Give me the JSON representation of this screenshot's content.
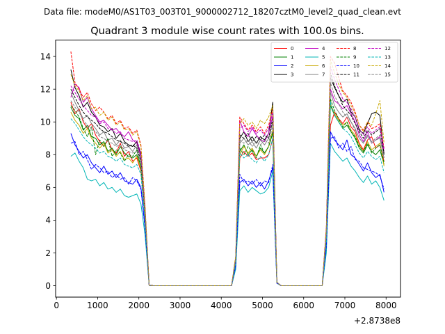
{
  "chart_data": {
    "type": "line",
    "suptitle": "Data file: modeM0/AS1T03_003T01_9000002712_18207cztM0_level2_quad_clean.evt",
    "title": "Quadrant 3 module wise count rates with 100.0s bins.",
    "xlabel": "",
    "ylabel": "",
    "x_offset_label": "+2.8738e8",
    "xlim": [
      -20,
      8350
    ],
    "ylim": [
      -0.7,
      15.0
    ],
    "x_ticks": [
      0,
      1000,
      2000,
      3000,
      4000,
      5000,
      6000,
      7000,
      8000
    ],
    "x_tick_labels": [
      "0",
      "1000",
      "2000",
      "3000",
      "4000",
      "5000",
      "6000",
      "7000",
      "8000"
    ],
    "y_ticks": [
      0,
      2,
      4,
      6,
      8,
      10,
      12,
      14
    ],
    "y_tick_labels": [
      "0",
      "2",
      "4",
      "6",
      "8",
      "10",
      "12",
      "14"
    ],
    "grid": false,
    "legend": {
      "location": "top-right",
      "ncol": 4
    },
    "x": [
      350,
      450,
      550,
      650,
      750,
      850,
      950,
      1050,
      1150,
      1250,
      1350,
      1450,
      1550,
      1650,
      1750,
      1850,
      1950,
      2050,
      2150,
      2250,
      2350,
      4250,
      4350,
      4450,
      4550,
      4650,
      4750,
      4850,
      4950,
      5050,
      5150,
      5250,
      5350,
      5450,
      5550,
      6450,
      6550,
      6650,
      6750,
      6850,
      6950,
      7050,
      7150,
      7250,
      7350,
      7450,
      7550,
      7650,
      7750,
      7850,
      7950
    ],
    "series": [
      {
        "name": "0",
        "color": "#ff0000",
        "dash": "solid",
        "values": [
          11.2,
          10.5,
          10.8,
          10.0,
          9.6,
          9.9,
          9.2,
          8.8,
          8.5,
          8.9,
          8.3,
          8.1,
          8.7,
          7.9,
          8.2,
          7.6,
          7.8,
          7.0,
          4.2,
          0.02,
          0.0,
          0.0,
          1.5,
          7.8,
          8.2,
          7.9,
          8.1,
          7.7,
          7.8,
          7.8,
          8.0,
          9.0,
          0.2,
          0.0,
          0.0,
          0.0,
          3.0,
          9.8,
          10.6,
          10.2,
          9.9,
          10.3,
          9.7,
          9.4,
          8.7,
          8.3,
          8.9,
          9.1,
          8.4,
          8.6,
          7.6
        ]
      },
      {
        "name": "1",
        "color": "#008000",
        "dash": "solid",
        "values": [
          10.9,
          10.4,
          10.2,
          9.5,
          9.8,
          9.1,
          9.0,
          8.6,
          8.8,
          8.2,
          8.4,
          8.0,
          8.5,
          8.1,
          7.9,
          7.8,
          8.0,
          7.3,
          4.0,
          0.02,
          0.0,
          0.0,
          1.4,
          8.2,
          8.6,
          8.0,
          8.3,
          7.9,
          8.4,
          8.1,
          8.5,
          9.3,
          0.2,
          0.0,
          0.0,
          0.0,
          3.0,
          11.0,
          10.4,
          10.0,
          9.6,
          9.8,
          9.4,
          9.0,
          8.4,
          8.1,
          8.6,
          8.2,
          8.0,
          8.3,
          7.4
        ]
      },
      {
        "name": "2",
        "color": "#0000ff",
        "dash": "solid",
        "values": [
          9.3,
          8.6,
          8.2,
          7.8,
          8.0,
          7.5,
          7.2,
          6.9,
          7.3,
          6.8,
          7.0,
          6.6,
          6.9,
          6.4,
          6.3,
          6.2,
          6.5,
          6.0,
          3.6,
          0.02,
          0.0,
          0.0,
          1.2,
          6.3,
          6.5,
          6.1,
          6.4,
          6.0,
          6.3,
          5.9,
          6.4,
          7.2,
          0.15,
          0.0,
          0.0,
          0.0,
          2.3,
          9.4,
          8.9,
          8.6,
          8.3,
          8.9,
          8.0,
          7.8,
          7.4,
          7.0,
          7.5,
          6.9,
          6.6,
          6.8,
          5.7
        ]
      },
      {
        "name": "3",
        "color": "#000000",
        "dash": "solid",
        "values": [
          13.2,
          12.1,
          11.6,
          10.9,
          11.2,
          10.6,
          10.3,
          9.8,
          9.7,
          9.4,
          9.6,
          9.0,
          9.3,
          8.8,
          8.6,
          8.5,
          8.8,
          8.0,
          4.7,
          0.02,
          0.0,
          0.0,
          1.7,
          9.0,
          9.4,
          8.8,
          9.1,
          8.7,
          9.1,
          8.9,
          9.3,
          11.2,
          0.2,
          0.0,
          0.0,
          0.0,
          3.4,
          12.7,
          12.1,
          11.6,
          11.2,
          11.4,
          10.6,
          10.3,
          9.5,
          9.3,
          9.9,
          10.5,
          10.6,
          10.4,
          8.0
        ]
      },
      {
        "name": "4",
        "color": "#c000c0",
        "dash": "solid",
        "values": [
          11.5,
          12.3,
          12.1,
          11.2,
          11.5,
          10.8,
          10.4,
          10.0,
          10.1,
          9.8,
          9.5,
          9.6,
          9.3,
          9.1,
          9.4,
          8.9,
          8.7,
          7.9,
          4.5,
          0.02,
          0.0,
          0.0,
          1.6,
          10.1,
          9.4,
          9.1,
          9.6,
          9.2,
          8.9,
          8.8,
          9.3,
          10.4,
          0.2,
          0.0,
          0.0,
          0.0,
          3.3,
          12.0,
          11.3,
          11.1,
          10.8,
          11.0,
          10.5,
          10.0,
          9.2,
          8.8,
          9.4,
          8.7,
          8.9,
          9.1,
          8.2
        ]
      },
      {
        "name": "5",
        "color": "#00b5b5",
        "dash": "solid",
        "values": [
          7.9,
          8.1,
          7.6,
          7.2,
          6.5,
          6.4,
          6.5,
          6.1,
          6.3,
          5.9,
          6.0,
          5.7,
          5.9,
          5.5,
          5.4,
          5.5,
          5.6,
          5.0,
          3.1,
          0.02,
          0.0,
          0.0,
          1.0,
          5.8,
          6.1,
          5.7,
          6.0,
          5.8,
          5.6,
          5.7,
          6.0,
          7.0,
          0.15,
          0.0,
          0.0,
          0.0,
          2.0,
          8.7,
          8.2,
          7.9,
          7.6,
          7.8,
          7.3,
          7.0,
          6.6,
          6.3,
          6.7,
          6.2,
          6.4,
          6.0,
          5.2
        ]
      },
      {
        "name": "6",
        "color": "#c8a800",
        "dash": "solid",
        "values": [
          10.6,
          10.1,
          9.8,
          9.3,
          9.6,
          9.0,
          8.7,
          8.4,
          8.7,
          8.1,
          8.3,
          7.9,
          8.2,
          7.7,
          7.8,
          7.5,
          7.9,
          7.1,
          4.1,
          0.02,
          0.0,
          0.0,
          1.5,
          8.0,
          8.5,
          8.1,
          8.4,
          7.9,
          8.3,
          8.0,
          8.5,
          9.5,
          0.2,
          0.0,
          0.0,
          0.0,
          3.0,
          11.1,
          10.5,
          10.1,
          9.8,
          10.0,
          9.5,
          9.2,
          8.6,
          8.2,
          8.8,
          8.3,
          8.5,
          8.7,
          7.3
        ]
      },
      {
        "name": "7",
        "color": "#808080",
        "dash": "solid",
        "values": [
          11.8,
          11.2,
          10.7,
          10.2,
          10.4,
          9.9,
          9.6,
          9.2,
          9.4,
          8.9,
          9.0,
          8.6,
          8.9,
          8.4,
          8.5,
          8.2,
          8.6,
          7.7,
          4.4,
          0.02,
          0.0,
          0.0,
          1.6,
          8.7,
          9.0,
          8.6,
          8.8,
          8.4,
          8.9,
          8.6,
          9.0,
          10.0,
          0.2,
          0.0,
          0.0,
          0.0,
          3.2,
          11.8,
          11.0,
          10.6,
          10.3,
          10.5,
          10.0,
          9.6,
          9.0,
          8.7,
          9.2,
          8.7,
          8.9,
          9.0,
          7.8
        ]
      },
      {
        "name": "8",
        "color": "#ff0000",
        "dash": "dashed",
        "values": [
          14.3,
          12.4,
          12.0,
          11.5,
          11.8,
          11.1,
          10.7,
          10.9,
          10.6,
          10.2,
          10.4,
          9.9,
          10.1,
          9.6,
          9.7,
          9.3,
          9.5,
          8.6,
          4.9,
          0.02,
          0.0,
          0.0,
          1.8,
          10.3,
          9.9,
          9.5,
          9.8,
          9.4,
          9.7,
          9.3,
          9.8,
          10.8,
          0.2,
          0.0,
          0.0,
          0.0,
          3.6,
          14.0,
          13.6,
          12.7,
          11.9,
          11.6,
          11.2,
          10.6,
          9.8,
          9.5,
          10.0,
          9.6,
          9.7,
          9.9,
          8.4
        ]
      },
      {
        "name": "9",
        "color": "#008000",
        "dash": "dashed",
        "values": [
          11.0,
          10.7,
          10.3,
          9.6,
          9.1,
          9.7,
          8.0,
          8.9,
          8.5,
          9.0,
          7.9,
          8.3,
          8.1,
          7.6,
          8.0,
          7.9,
          8.3,
          7.2,
          4.0,
          0.02,
          0.0,
          0.0,
          1.5,
          8.4,
          8.0,
          8.5,
          8.2,
          7.8,
          8.6,
          8.1,
          8.5,
          9.4,
          0.2,
          0.0,
          0.0,
          0.0,
          3.0,
          11.4,
          10.7,
          10.2,
          9.7,
          10.0,
          9.4,
          9.1,
          8.5,
          8.2,
          8.7,
          8.1,
          8.4,
          8.6,
          7.5
        ]
      },
      {
        "name": "10",
        "color": "#0000ff",
        "dash": "dashed",
        "values": [
          8.7,
          8.8,
          8.0,
          8.2,
          7.7,
          7.1,
          7.4,
          7.2,
          6.9,
          7.0,
          6.6,
          6.8,
          6.5,
          6.6,
          6.2,
          6.6,
          6.4,
          5.9,
          3.5,
          0.02,
          0.0,
          0.0,
          1.2,
          6.8,
          6.3,
          6.4,
          6.2,
          6.5,
          6.1,
          6.4,
          6.3,
          7.4,
          0.15,
          0.0,
          0.0,
          0.0,
          2.4,
          9.0,
          9.1,
          8.4,
          8.7,
          8.2,
          8.5,
          7.7,
          7.6,
          7.2,
          7.1,
          7.0,
          6.9,
          6.7,
          5.9
        ]
      },
      {
        "name": "11",
        "color": "#000000",
        "dash": "dashed",
        "values": [
          12.0,
          11.5,
          11.0,
          10.6,
          10.3,
          10.1,
          9.9,
          9.6,
          9.4,
          9.3,
          9.1,
          8.9,
          8.8,
          8.7,
          8.5,
          8.6,
          8.4,
          7.6,
          4.4,
          0.02,
          0.0,
          0.0,
          1.6,
          9.2,
          9.0,
          9.3,
          8.8,
          9.1,
          8.9,
          9.2,
          9.0,
          10.2,
          0.2,
          0.0,
          0.0,
          0.0,
          3.3,
          13.0,
          12.2,
          11.6,
          11.0,
          10.7,
          10.4,
          9.9,
          9.4,
          9.0,
          9.5,
          9.2,
          9.4,
          9.6,
          8.1
        ]
      },
      {
        "name": "12",
        "color": "#c000c0",
        "dash": "dashed",
        "values": [
          12.2,
          11.8,
          11.4,
          11.0,
          10.7,
          10.4,
          10.3,
          9.9,
          10.0,
          9.6,
          9.5,
          9.3,
          9.4,
          9.0,
          8.9,
          8.8,
          8.9,
          8.1,
          4.6,
          0.02,
          0.0,
          0.0,
          1.7,
          9.6,
          9.8,
          9.4,
          9.7,
          9.3,
          9.5,
          9.2,
          9.6,
          10.6,
          0.2,
          0.0,
          0.0,
          0.0,
          3.4,
          13.4,
          12.6,
          12.0,
          11.4,
          11.2,
          10.8,
          10.3,
          9.6,
          9.2,
          9.7,
          9.3,
          9.5,
          9.7,
          8.3
        ]
      },
      {
        "name": "13",
        "color": "#00b5b5",
        "dash": "dashed",
        "values": [
          10.2,
          9.9,
          9.5,
          9.1,
          8.8,
          8.6,
          8.4,
          8.1,
          8.2,
          7.9,
          7.8,
          7.6,
          7.8,
          7.4,
          7.3,
          7.2,
          7.4,
          6.8,
          3.9,
          0.02,
          0.0,
          0.0,
          1.4,
          8.1,
          7.8,
          8.0,
          7.7,
          7.5,
          7.9,
          7.6,
          8.0,
          9.0,
          0.2,
          0.0,
          0.0,
          0.0,
          2.8,
          11.2,
          10.4,
          10.0,
          9.6,
          9.4,
          9.1,
          8.6,
          8.1,
          7.8,
          8.2,
          7.9,
          7.7,
          7.9,
          6.9
        ]
      },
      {
        "name": "14",
        "color": "#c8a800",
        "dash": "dashed",
        "values": [
          12.9,
          12.2,
          11.9,
          11.3,
          11.6,
          10.8,
          10.9,
          10.4,
          10.6,
          10.1,
          10.3,
          9.8,
          10.0,
          9.5,
          9.6,
          9.2,
          9.4,
          8.5,
          4.8,
          0.02,
          0.0,
          0.0,
          1.8,
          9.9,
          10.2,
          9.8,
          10.0,
          9.6,
          10.1,
          9.9,
          10.3,
          11.0,
          0.2,
          0.0,
          0.0,
          0.0,
          3.5,
          13.8,
          13.0,
          12.3,
          11.8,
          11.5,
          11.0,
          10.5,
          9.8,
          9.4,
          10.0,
          9.8,
          10.5,
          11.3,
          8.7
        ]
      },
      {
        "name": "15",
        "color": "#808080",
        "dash": "dashed",
        "values": [
          11.3,
          10.9,
          10.6,
          10.1,
          9.8,
          9.6,
          9.4,
          9.1,
          9.0,
          8.8,
          8.7,
          8.5,
          8.6,
          8.3,
          8.2,
          8.1,
          8.2,
          7.5,
          4.3,
          0.02,
          0.0,
          0.0,
          1.6,
          8.9,
          8.7,
          8.9,
          8.5,
          8.8,
          8.6,
          8.9,
          8.7,
          9.8,
          0.2,
          0.0,
          0.0,
          0.0,
          3.1,
          12.4,
          11.6,
          11.1,
          10.6,
          10.3,
          10.0,
          9.5,
          9.0,
          8.7,
          9.1,
          8.8,
          9.0,
          9.2,
          7.8
        ]
      }
    ]
  }
}
